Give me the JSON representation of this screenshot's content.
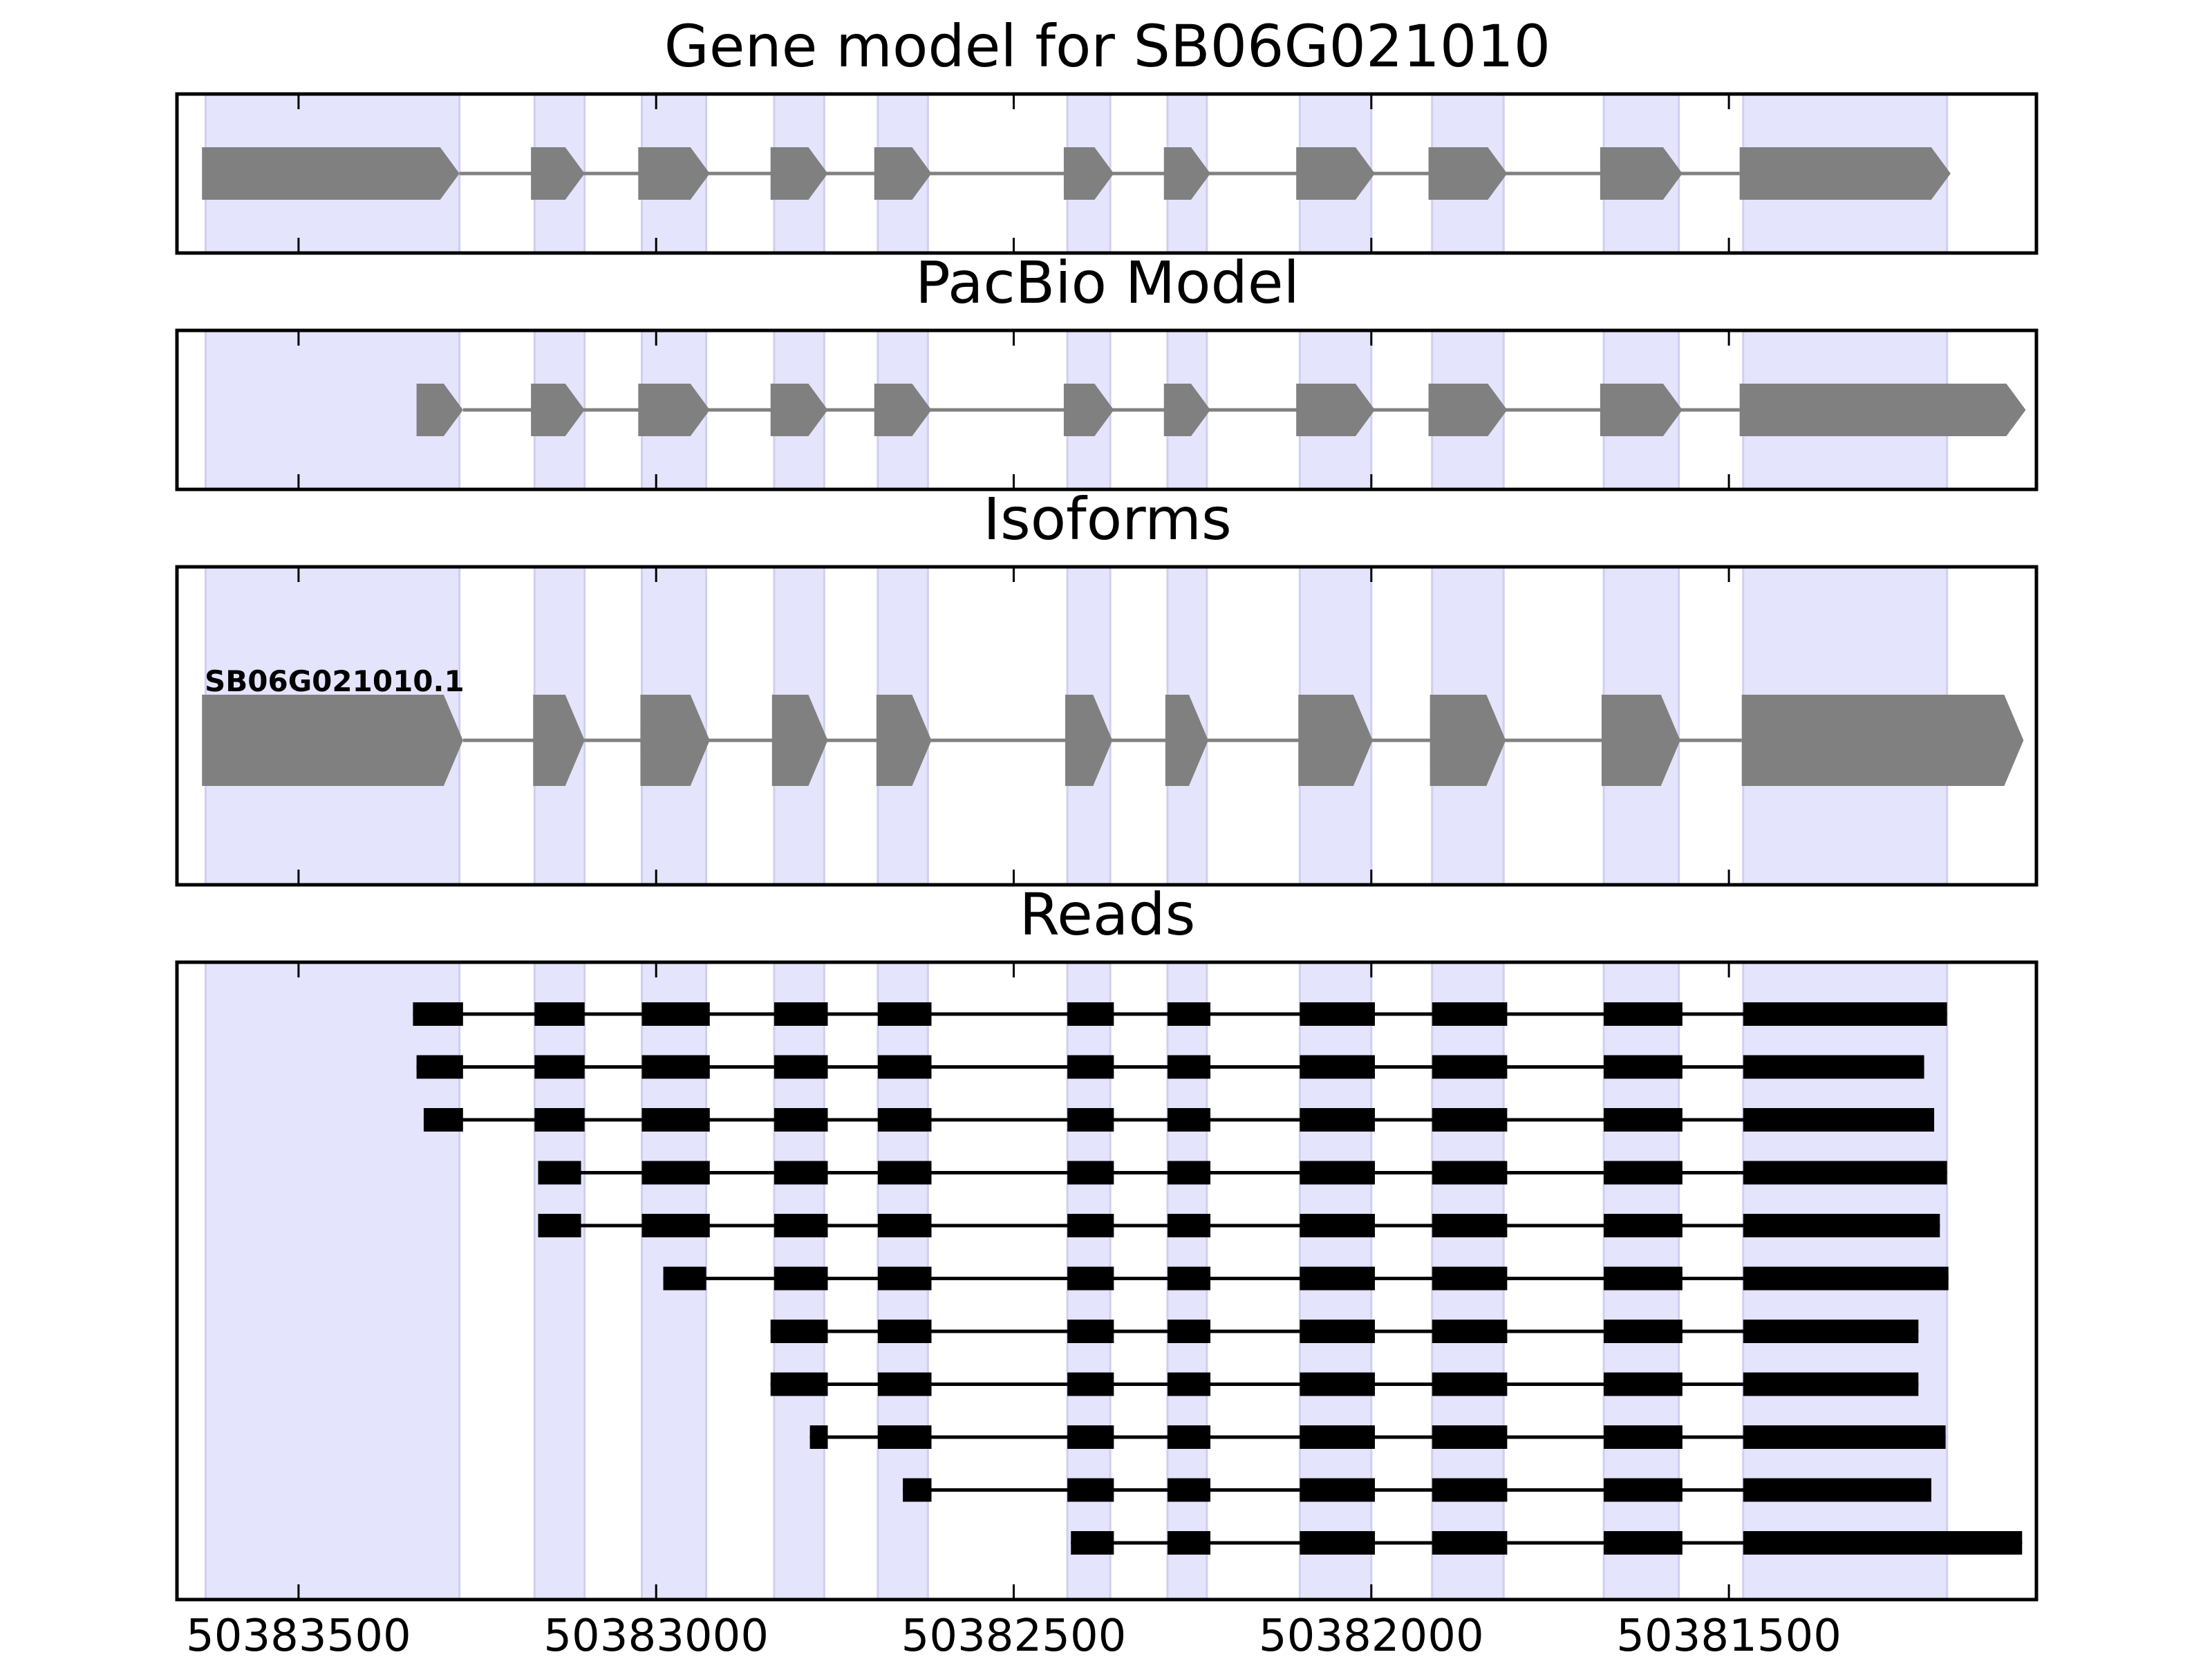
{
  "panels": {
    "gene_model": {
      "title": "Gene model for SB06G021010"
    },
    "pacbio": {
      "title": "PacBio Model"
    },
    "isoforms": {
      "title": "Isoforms",
      "isoform_label": "SB06G021010.1"
    },
    "reads": {
      "title": "Reads"
    }
  },
  "colors": {
    "shade": "#e4e4fc",
    "shade_edge": "#cfcff0",
    "model_fill": "#808080",
    "read_fill": "#000000",
    "frame": "#000000"
  },
  "chart_data": {
    "type": "diagram",
    "xlim": [
      50383670,
      50381070
    ],
    "x_axis": {
      "ticks": [
        50383500,
        50383000,
        50382500,
        50382000,
        50381500
      ],
      "tick_labels": [
        "50383500",
        "50383000",
        "50382500",
        "50382000",
        "50381500"
      ]
    },
    "shaded_exons": [
      [
        50383630,
        50383275
      ],
      [
        50383170,
        50383100
      ],
      [
        50383020,
        50382930
      ],
      [
        50382835,
        50382765
      ],
      [
        50382690,
        50382620
      ],
      [
        50382425,
        50382365
      ],
      [
        50382285,
        50382230
      ],
      [
        50382100,
        50382000
      ],
      [
        50381915,
        50381815
      ],
      [
        50381675,
        50381570
      ],
      [
        50381480,
        50381195
      ]
    ],
    "gene_model": [
      [
        50383635,
        50383275
      ],
      [
        50383175,
        50383100
      ],
      [
        50383025,
        50382925
      ],
      [
        50382840,
        50382760
      ],
      [
        50382695,
        50382615
      ],
      [
        50382430,
        50382360
      ],
      [
        50382290,
        50382225
      ],
      [
        50382105,
        50381995
      ],
      [
        50381920,
        50381810
      ],
      [
        50381680,
        50381565
      ],
      [
        50381485,
        50381190
      ]
    ],
    "pacbio_model": [
      [
        50383335,
        50383270
      ],
      [
        50383175,
        50383100
      ],
      [
        50383025,
        50382925
      ],
      [
        50382840,
        50382760
      ],
      [
        50382695,
        50382615
      ],
      [
        50382430,
        50382360
      ],
      [
        50382290,
        50382225
      ],
      [
        50382105,
        50381995
      ],
      [
        50381920,
        50381810
      ],
      [
        50381680,
        50381565
      ],
      [
        50381485,
        50381085
      ]
    ],
    "isoforms": [
      {
        "name": "SB06G021010.1",
        "exons": [
          [
            50383635,
            50383270
          ],
          [
            50383172,
            50383100
          ],
          [
            50383022,
            50382925
          ],
          [
            50382838,
            50382760
          ],
          [
            50382692,
            50382615
          ],
          [
            50382428,
            50382362
          ],
          [
            50382288,
            50382228
          ],
          [
            50382102,
            50381998
          ],
          [
            50381918,
            50381812
          ],
          [
            50381678,
            50381568
          ],
          [
            50381482,
            50381088
          ]
        ]
      }
    ],
    "reads": [
      {
        "exons": [
          [
            50383340,
            50383270
          ],
          [
            50383170,
            50383100
          ],
          [
            50383020,
            50382925
          ],
          [
            50382835,
            50382760
          ],
          [
            50382690,
            50382615
          ],
          [
            50382425,
            50382360
          ],
          [
            50382285,
            50382225
          ],
          [
            50382100,
            50381995
          ],
          [
            50381915,
            50381810
          ],
          [
            50381675,
            50381565
          ],
          [
            50381480,
            50381195
          ]
        ]
      },
      {
        "exons": [
          [
            50383335,
            50383270
          ],
          [
            50383170,
            50383100
          ],
          [
            50383020,
            50382925
          ],
          [
            50382835,
            50382760
          ],
          [
            50382690,
            50382615
          ],
          [
            50382425,
            50382360
          ],
          [
            50382285,
            50382225
          ],
          [
            50382100,
            50381995
          ],
          [
            50381915,
            50381810
          ],
          [
            50381675,
            50381565
          ],
          [
            50381480,
            50381227
          ]
        ]
      },
      {
        "exons": [
          [
            50383325,
            50383270
          ],
          [
            50383170,
            50383100
          ],
          [
            50383020,
            50382925
          ],
          [
            50382835,
            50382760
          ],
          [
            50382690,
            50382615
          ],
          [
            50382425,
            50382360
          ],
          [
            50382285,
            50382225
          ],
          [
            50382100,
            50381995
          ],
          [
            50381915,
            50381810
          ],
          [
            50381675,
            50381565
          ],
          [
            50381480,
            50381213
          ]
        ]
      },
      {
        "exons": [
          [
            50383165,
            50383105
          ],
          [
            50383020,
            50382925
          ],
          [
            50382835,
            50382760
          ],
          [
            50382690,
            50382615
          ],
          [
            50382425,
            50382360
          ],
          [
            50382285,
            50382225
          ],
          [
            50382100,
            50381995
          ],
          [
            50381915,
            50381810
          ],
          [
            50381675,
            50381565
          ],
          [
            50381480,
            50381195
          ]
        ]
      },
      {
        "exons": [
          [
            50383165,
            50383105
          ],
          [
            50383020,
            50382925
          ],
          [
            50382835,
            50382760
          ],
          [
            50382690,
            50382615
          ],
          [
            50382425,
            50382360
          ],
          [
            50382285,
            50382225
          ],
          [
            50382100,
            50381995
          ],
          [
            50381915,
            50381810
          ],
          [
            50381675,
            50381565
          ],
          [
            50381480,
            50381205
          ]
        ]
      },
      {
        "exons": [
          [
            50382990,
            50382930
          ],
          [
            50382835,
            50382760
          ],
          [
            50382690,
            50382615
          ],
          [
            50382425,
            50382360
          ],
          [
            50382285,
            50382225
          ],
          [
            50382100,
            50381995
          ],
          [
            50381915,
            50381810
          ],
          [
            50381675,
            50381565
          ],
          [
            50381480,
            50381193
          ]
        ]
      },
      {
        "exons": [
          [
            50382840,
            50382760
          ],
          [
            50382690,
            50382615
          ],
          [
            50382425,
            50382360
          ],
          [
            50382285,
            50382225
          ],
          [
            50382100,
            50381995
          ],
          [
            50381915,
            50381810
          ],
          [
            50381675,
            50381565
          ],
          [
            50381480,
            50381235
          ]
        ]
      },
      {
        "exons": [
          [
            50382840,
            50382760
          ],
          [
            50382690,
            50382615
          ],
          [
            50382425,
            50382360
          ],
          [
            50382285,
            50382225
          ],
          [
            50382100,
            50381995
          ],
          [
            50381915,
            50381810
          ],
          [
            50381675,
            50381565
          ],
          [
            50381480,
            50381235
          ]
        ]
      },
      {
        "exons": [
          [
            50382785,
            50382760
          ],
          [
            50382690,
            50382615
          ],
          [
            50382425,
            50382360
          ],
          [
            50382285,
            50382225
          ],
          [
            50382100,
            50381995
          ],
          [
            50381915,
            50381810
          ],
          [
            50381675,
            50381565
          ],
          [
            50381480,
            50381197
          ]
        ]
      },
      {
        "exons": [
          [
            50382655,
            50382615
          ],
          [
            50382425,
            50382360
          ],
          [
            50382285,
            50382225
          ],
          [
            50382100,
            50381995
          ],
          [
            50381915,
            50381810
          ],
          [
            50381675,
            50381565
          ],
          [
            50381480,
            50381217
          ]
        ]
      },
      {
        "exons": [
          [
            50382420,
            50382360
          ],
          [
            50382285,
            50382225
          ],
          [
            50382100,
            50381995
          ],
          [
            50381915,
            50381810
          ],
          [
            50381675,
            50381565
          ],
          [
            50381480,
            50381090
          ]
        ]
      }
    ]
  }
}
